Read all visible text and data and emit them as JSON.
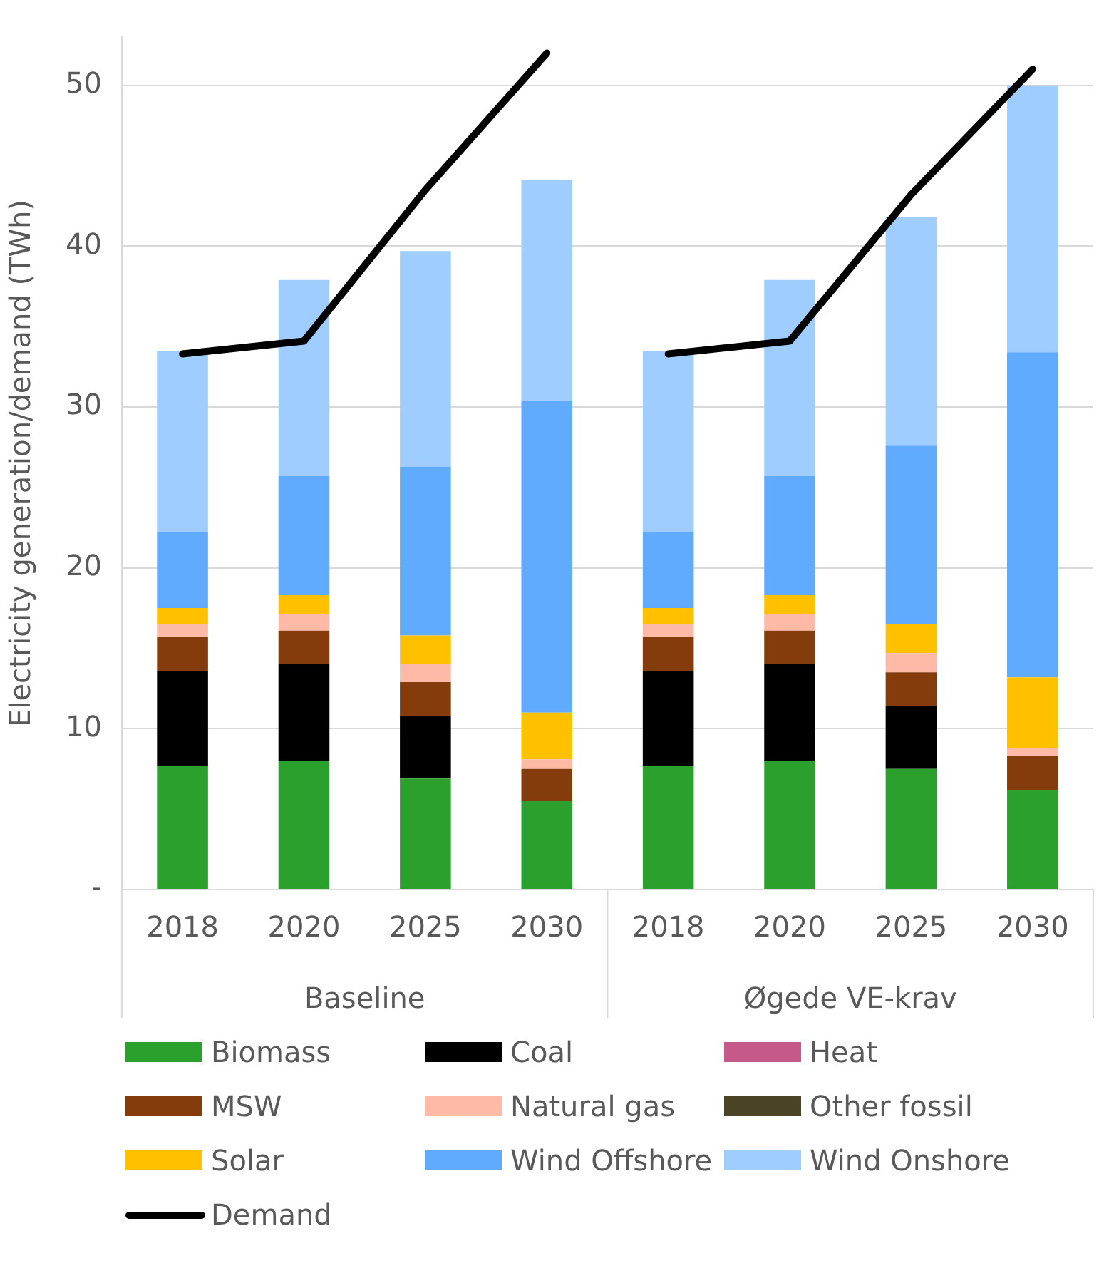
{
  "chart_data": {
    "type": "bar",
    "stacked": true,
    "ylabel": "Electricity generation/demand (TWh)",
    "categories": [
      "2018",
      "2020",
      "2025",
      "2030",
      "2018",
      "2020",
      "2025",
      "2030"
    ],
    "annotations": [
      "Baseline",
      "Øgede VE-krav"
    ],
    "ylim": [
      0,
      53
    ],
    "yticks": [
      {
        "value": 0,
        "label": "-"
      },
      10,
      20,
      30,
      40,
      50
    ],
    "grid": "y",
    "legend": "bottom",
    "series": [
      {
        "name": "Biomass",
        "color": "#2ca02c",
        "values": [
          7.7,
          8.0,
          6.9,
          5.5,
          7.7,
          8.0,
          7.5,
          6.2
        ]
      },
      {
        "name": "Coal",
        "color": "#000000",
        "values": [
          5.9,
          6.0,
          3.9,
          0,
          5.9,
          6.0,
          3.9,
          0
        ]
      },
      {
        "name": "Heat",
        "color": "#c55a8a",
        "values": [
          0,
          0,
          0,
          0,
          0,
          0,
          0,
          0
        ]
      },
      {
        "name": "MSW",
        "color": "#843c0c",
        "values": [
          2.1,
          2.1,
          2.1,
          2.0,
          2.1,
          2.1,
          2.1,
          2.1
        ]
      },
      {
        "name": "Natural gas",
        "color": "#ffb9a7",
        "values": [
          0.8,
          1.0,
          1.1,
          0.6,
          0.8,
          1.0,
          1.2,
          0.5
        ]
      },
      {
        "name": "Other fossil",
        "color": "#4a4425",
        "values": [
          0,
          0,
          0,
          0,
          0,
          0,
          0,
          0
        ]
      },
      {
        "name": "Solar",
        "color": "#ffc000",
        "values": [
          1.0,
          1.2,
          1.8,
          2.9,
          1.0,
          1.2,
          1.8,
          4.4
        ]
      },
      {
        "name": "Wind Offshore",
        "color": "#61abff",
        "values": [
          4.7,
          7.4,
          10.5,
          19.4,
          4.7,
          7.4,
          11.1,
          20.2
        ]
      },
      {
        "name": "Wind Onshore",
        "color": "#9fcdff",
        "values": [
          11.3,
          12.2,
          13.4,
          13.7,
          11.3,
          12.2,
          14.2,
          16.6
        ]
      },
      {
        "name": "Demand",
        "type": "line",
        "color": "#000000",
        "marker": "none",
        "values": [
          33.3,
          34.1,
          43.5,
          52.0,
          33.3,
          34.1,
          43.2,
          51.0
        ]
      }
    ]
  }
}
